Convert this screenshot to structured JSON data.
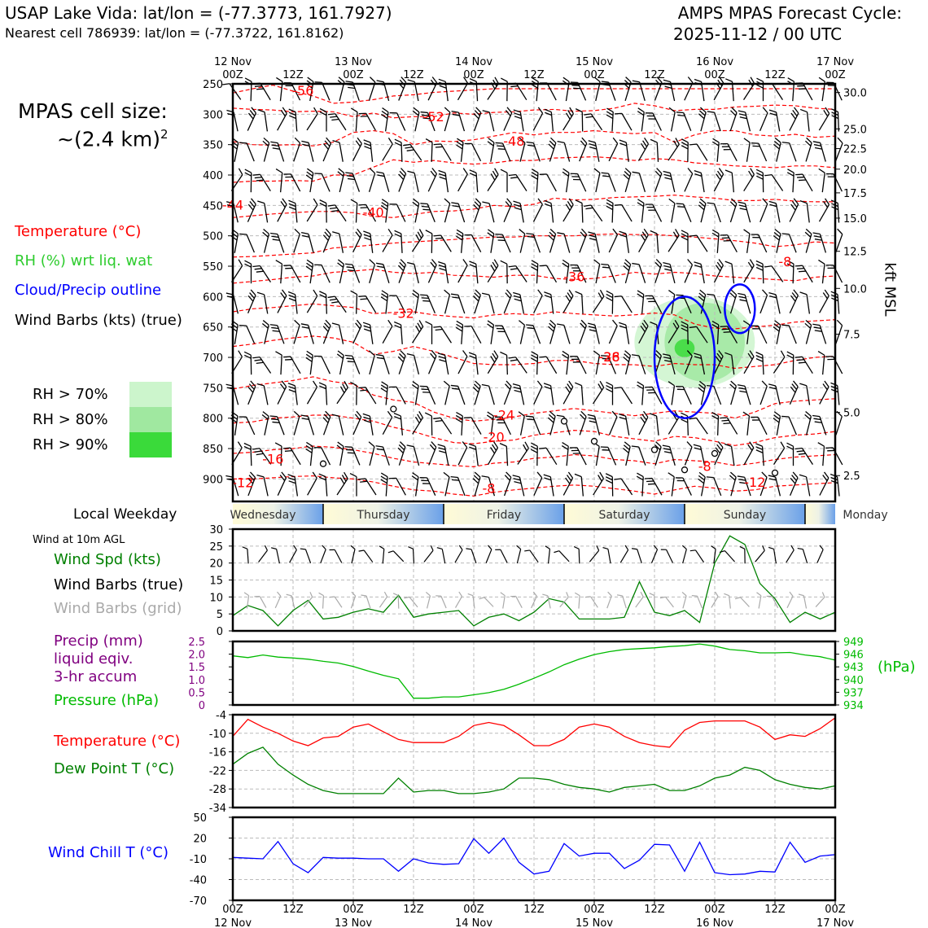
{
  "header": {
    "station_title": "USAP Lake Vida: lat/lon = (-77.3773, 161.7927)",
    "nearest_cell": "Nearest cell 786939: lat/lon = (-77.3722, 161.8162)",
    "forecast_title": "AMPS MPAS Forecast Cycle:",
    "forecast_cycle": "2025-11-12 / 00 UTC"
  },
  "cell_size": {
    "line1": "MPAS cell size:",
    "line2": "~(2.4 km)",
    "exponent": "2"
  },
  "legend_upper": {
    "temperature": "Temperature (°C)",
    "rh": "RH (%) wrt liq. wat",
    "cloud": "Cloud/Precip outline",
    "wind": "Wind Barbs (kts) (true)",
    "rh70": "RH > 70%",
    "rh80": "RH > 80%",
    "rh90": "RH > 90%"
  },
  "colors": {
    "temperature": "#ff0000",
    "rh_text": "#2ecc2e",
    "cloud": "#0000ff",
    "rh70": "#ccf5cc",
    "rh80": "#a0e8a0",
    "rh90": "#3ada3a",
    "wind_speed": "#008000",
    "grid_barbs": "#aaaaaa",
    "precip": "#800080",
    "pressure": "#00bb00",
    "dewpoint": "#008000",
    "wind_chill": "#0000ff"
  },
  "time_axis": {
    "top_ticks": [
      "00Z",
      "12Z",
      "00Z",
      "12Z",
      "00Z",
      "12Z",
      "00Z",
      "12Z",
      "00Z",
      "12Z",
      "00Z"
    ],
    "top_dates": [
      "12 Nov",
      "",
      "13 Nov",
      "",
      "14 Nov",
      "",
      "15 Nov",
      "",
      "16 Nov",
      "",
      "17 Nov"
    ],
    "bottom_ticks": [
      "00Z",
      "12Z",
      "00Z",
      "12Z",
      "00Z",
      "12Z",
      "00Z",
      "12Z",
      "00Z",
      "12Z",
      "00Z"
    ],
    "bottom_dates": [
      "12 Nov",
      "",
      "13 Nov",
      "",
      "14 Nov",
      "",
      "15 Nov",
      "",
      "16 Nov",
      "",
      "17 Nov"
    ]
  },
  "weekday_band": {
    "label": "Local Weekday",
    "days": [
      "Wednesday",
      "Thursday",
      "Friday",
      "Saturday",
      "Sunday",
      "Monday"
    ]
  },
  "wind10m": {
    "title": "Wind at 10m AGL",
    "speed_label": "Wind Spd (kts)",
    "barbs_label": "Wind Barbs (true)",
    "grid_label": "Wind Barbs (grid)"
  },
  "precip_pressure": {
    "precip_label1": "Precip (mm)",
    "precip_label2": "liquid eqiv.",
    "precip_label3": "3-hr accum",
    "pressure_label": "Pressure (hPa)",
    "unit_right": "(hPa)"
  },
  "temps": {
    "temp_label": "Temperature (°C)",
    "dew_label": "Dew Point T (°C)"
  },
  "windchill": {
    "label": "Wind Chill T (°C)"
  },
  "chart_data": [
    {
      "type": "heatmap",
      "name": "time-height cross section",
      "yaxis_left": {
        "ticks": [
          "250",
          "300",
          "350",
          "400",
          "450",
          "500",
          "550",
          "600",
          "650",
          "700",
          "750",
          "800",
          "850",
          "900"
        ],
        "ylim": [
          937,
          250
        ]
      },
      "yaxis_right": {
        "label": "kft MSL",
        "ticks": [
          "30.0",
          "25.0",
          "22.5",
          "20.0",
          "17.5",
          "15.0",
          "12.5",
          "10.0",
          "7.5",
          "5.0",
          "2.5"
        ]
      },
      "temperature_contour_labels": [
        "-56",
        "-52",
        "-48",
        "-44",
        "-40",
        "-36",
        "-32",
        "-28",
        "-24",
        "-20",
        "-16",
        "-12",
        "-8",
        "-8",
        "-12",
        "-8",
        "-36"
      ],
      "temperature_contours": [
        {
          "label": "-56",
          "hpa": [
            265,
            258,
            252,
            262,
            270,
            282,
            280,
            276,
            270,
            268,
            264,
            262,
            260,
            258,
            258,
            258,
            258,
            258,
            258,
            258,
            258,
            258,
            258,
            258,
            258,
            258,
            258,
            258,
            258,
            258,
            258
          ]
        },
        {
          "label": "-52",
          "hpa": [
            290,
            292,
            293,
            296,
            295,
            296,
            304,
            298,
            306,
            304,
            304,
            298,
            300,
            297,
            296,
            293,
            292,
            295,
            294,
            290,
            282,
            286,
            294,
            292,
            292,
            288,
            287,
            285,
            286,
            290,
            292
          ]
        },
        {
          "label": "-48",
          "hpa": [
            345,
            350,
            351,
            350,
            352,
            346,
            330,
            327,
            332,
            350,
            344,
            345,
            342,
            336,
            330,
            334,
            330,
            330,
            327,
            330,
            332,
            330,
            346,
            334,
            327,
            327,
            334,
            336,
            333,
            338,
            336
          ]
        },
        {
          "label": "-44",
          "hpa": [
            412,
            410,
            410,
            409,
            410,
            400,
            400,
            387,
            375,
            379,
            376,
            380,
            382,
            380,
            376,
            376,
            372,
            371,
            370,
            372,
            376,
            373,
            375,
            380,
            382,
            385,
            386,
            388,
            385,
            385,
            388
          ]
        },
        {
          "label": "-40",
          "hpa": [
            470,
            467,
            464,
            462,
            460,
            460,
            462,
            468,
            470,
            465,
            460,
            459,
            456,
            450,
            452,
            448,
            438,
            441,
            440,
            437,
            436,
            435,
            433,
            436,
            438,
            442,
            442,
            440,
            443,
            444,
            444
          ]
        },
        {
          "label": "-36",
          "hpa": [
            535,
            534,
            532,
            530,
            528,
            520,
            518,
            515,
            512,
            510,
            508,
            506,
            504,
            502,
            502,
            500,
            500,
            500,
            498,
            497,
            498,
            498,
            500,
            502,
            505,
            508,
            512,
            518,
            515,
            510,
            512
          ]
        },
        {
          "label": "-32",
          "hpa": [
            578,
            575,
            572,
            568,
            566,
            560,
            558,
            555,
            560,
            562,
            560,
            565,
            566,
            568,
            565,
            565,
            570,
            572,
            570,
            566,
            560,
            563,
            560,
            562,
            566,
            568,
            570,
            572,
            574,
            568,
            566
          ]
        },
        {
          "label": "-28",
          "hpa": [
            625,
            620,
            618,
            615,
            612,
            615,
            618,
            628,
            626,
            625,
            630,
            633,
            635,
            630,
            628,
            630,
            625,
            628,
            630,
            632,
            630,
            627,
            630,
            645,
            652,
            653,
            650,
            647,
            642,
            640,
            638
          ]
        },
        {
          "label": "-24",
          "hpa": [
            682,
            678,
            672,
            668,
            665,
            668,
            675,
            695,
            690,
            682,
            690,
            700,
            710,
            712,
            712,
            710,
            705,
            705,
            710,
            712,
            712,
            715,
            710,
            712,
            712,
            718,
            715,
            712,
            705,
            700,
            698
          ]
        },
        {
          "label": "-20",
          "hpa": [
            752,
            746,
            742,
            738,
            732,
            740,
            744,
            762,
            770,
            774,
            790,
            800,
            805,
            802,
            798,
            792,
            788,
            784,
            788,
            792,
            796,
            792,
            788,
            790,
            792,
            800,
            790,
            776,
            772,
            770,
            768
          ]
        },
        {
          "label": "-16",
          "hpa": [
            808,
            806,
            800,
            798,
            795,
            795,
            800,
            805,
            815,
            822,
            832,
            840,
            842,
            838,
            836,
            828,
            824,
            820,
            822,
            830,
            834,
            838,
            830,
            832,
            838,
            845,
            840,
            832,
            828,
            826,
            822
          ]
        },
        {
          "label": "-12",
          "hpa": [
            858,
            856,
            852,
            850,
            846,
            848,
            852,
            858,
            866,
            872,
            875,
            878,
            880,
            874,
            872,
            866,
            864,
            860,
            862,
            868,
            870,
            875,
            868,
            870,
            872,
            878,
            874,
            868,
            864,
            862,
            860
          ]
        },
        {
          "label": "-8",
          "hpa": [
            900,
            900,
            898,
            896,
            895,
            898,
            900,
            905,
            912,
            918,
            920,
            925,
            928,
            922,
            918,
            915,
            912,
            910,
            912,
            916,
            920,
            925,
            918,
            912,
            915,
            920,
            918,
            912,
            910,
            908,
            906
          ]
        }
      ],
      "wind_barbs": "time-height wind barb grid",
      "rh_shading": [
        {
          "level": "rh70",
          "time_h": [
            80,
            104
          ],
          "hpa": [
            600,
            750
          ]
        },
        {
          "level": "rh80",
          "time_h": [
            86,
            102
          ],
          "hpa": [
            610,
            740
          ]
        },
        {
          "level": "rh90",
          "time_h": [
            88,
            92
          ],
          "hpa": [
            670,
            700
          ]
        }
      ],
      "cloud_outline": [
        {
          "time_h": [
            84,
            96
          ],
          "hpa": [
            600,
            800
          ]
        },
        {
          "time_h": [
            98,
            104
          ],
          "hpa": [
            580,
            660
          ]
        }
      ]
    },
    {
      "type": "line",
      "name": "Wind Spd (kts)",
      "yaxis": {
        "ticks": [
          "0",
          "5",
          "10",
          "15",
          "20",
          "25",
          "30"
        ],
        "ylim": [
          0,
          30
        ]
      },
      "x_hours": [
        0,
        3,
        6,
        9,
        12,
        15,
        18,
        21,
        24,
        27,
        30,
        33,
        36,
        39,
        42,
        45,
        48,
        51,
        54,
        57,
        60,
        63,
        66,
        69,
        72,
        75,
        78,
        81,
        84,
        87,
        90,
        93,
        96,
        99,
        102,
        105,
        108,
        111,
        114,
        117,
        120
      ],
      "values": [
        4.5,
        7.5,
        6,
        1.5,
        6,
        9,
        3.5,
        4,
        5.5,
        6.5,
        5.5,
        10.5,
        4,
        5,
        5.5,
        6,
        1.5,
        4,
        5,
        3,
        5.5,
        9.5,
        8.5,
        3.5,
        3.5,
        3.5,
        4,
        14.5,
        5.5,
        4.5,
        6,
        2.5,
        20,
        28,
        25.5,
        14,
        9.5,
        2.5,
        5.5,
        3.5,
        5.5
      ]
    },
    {
      "type": "line",
      "name": "Pressure (hPa)",
      "yaxis_left": {
        "label": "Precip (mm)",
        "ticks": [
          "0",
          "0.5",
          "1.0",
          "1.5",
          "2.0",
          "2.5"
        ],
        "ylim": [
          0,
          2.5
        ]
      },
      "yaxis_right": {
        "label": "(hPa)",
        "ticks": [
          "934",
          "937",
          "940",
          "943",
          "946",
          "949"
        ],
        "ylim": [
          934,
          949
        ]
      },
      "x_hours": [
        0,
        3,
        6,
        9,
        12,
        15,
        18,
        21,
        24,
        27,
        30,
        33,
        36,
        39,
        42,
        45,
        48,
        51,
        54,
        57,
        60,
        63,
        66,
        69,
        72,
        75,
        78,
        81,
        84,
        87,
        90,
        93,
        96,
        99,
        102,
        105,
        108,
        111,
        114,
        117,
        120
      ],
      "values": [
        945.6,
        945.2,
        945.8,
        945.3,
        945.1,
        944.8,
        944.3,
        943.9,
        943.1,
        942,
        941,
        940.2,
        935.6,
        935.6,
        935.9,
        935.9,
        936.4,
        936.9,
        937.7,
        938.9,
        940.3,
        941.8,
        943.5,
        944.8,
        945.9,
        946.6,
        947.1,
        947.3,
        947.5,
        947.8,
        948,
        948.4,
        947.9,
        947.1,
        946.8,
        946.3,
        946.3,
        946.4,
        945.8,
        945.4,
        944.6
      ]
    },
    {
      "type": "line",
      "name": "Temperature / Dew Point",
      "yaxis": {
        "ticks": [
          "-4",
          "-10",
          "-16",
          "-22",
          "-28",
          "-34"
        ],
        "ylim": [
          -34,
          -4
        ]
      },
      "x_hours": [
        0,
        3,
        6,
        9,
        12,
        15,
        18,
        21,
        24,
        27,
        30,
        33,
        36,
        39,
        42,
        45,
        48,
        51,
        54,
        57,
        60,
        63,
        66,
        69,
        72,
        75,
        78,
        81,
        84,
        87,
        90,
        93,
        96,
        99,
        102,
        105,
        108,
        111,
        114,
        117,
        120
      ],
      "series": [
        {
          "name": "Temperature (°C)",
          "values": [
            -11,
            -5.5,
            -8,
            -10,
            -12.5,
            -14,
            -11.5,
            -11,
            -8,
            -7,
            -9.5,
            -12,
            -13,
            -13,
            -13,
            -11,
            -7.5,
            -6.5,
            -7.5,
            -10.5,
            -14,
            -14,
            -12,
            -8,
            -7,
            -8,
            -11,
            -13,
            -14,
            -14.5,
            -9,
            -6.5,
            -6,
            -6,
            -6,
            -8,
            -12,
            -10.5,
            -11,
            -8.5,
            -5
          ]
        },
        {
          "name": "Dew Point T (°C)",
          "values": [
            -20,
            -16.5,
            -14.5,
            -20,
            -23.5,
            -26.5,
            -28.5,
            -29.5,
            -29.5,
            -29.5,
            -29.5,
            -24.5,
            -29,
            -28.5,
            -28.5,
            -29.5,
            -29.5,
            -29,
            -28,
            -24.5,
            -24.5,
            -25,
            -26.5,
            -27.5,
            -28,
            -29,
            -27.5,
            -27,
            -26.5,
            -28.5,
            -28.5,
            -27,
            -24.5,
            -23.5,
            -21,
            -22,
            -25,
            -26.5,
            -27.5,
            -28,
            -27
          ]
        }
      ]
    },
    {
      "type": "line",
      "name": "Wind Chill T (°C)",
      "yaxis": {
        "ticks": [
          "50",
          "20",
          "-10",
          "-40",
          "-70"
        ],
        "ylim": [
          -70,
          50
        ]
      },
      "x_hours": [
        0,
        3,
        6,
        9,
        12,
        15,
        18,
        21,
        24,
        27,
        30,
        33,
        36,
        39,
        42,
        45,
        48,
        51,
        54,
        57,
        60,
        63,
        66,
        69,
        72,
        75,
        78,
        81,
        84,
        87,
        90,
        93,
        96,
        99,
        102,
        105,
        108,
        111,
        114,
        117,
        120
      ],
      "values": [
        -8,
        -9,
        -10,
        15,
        -17,
        -30,
        -8,
        -9,
        -9,
        -10,
        -10,
        -28,
        -10,
        -16,
        -18,
        -17,
        19,
        -2,
        20,
        -15,
        -32,
        -28,
        12,
        -6,
        -2,
        -2,
        -24,
        -12,
        11,
        10,
        -28,
        14,
        -30,
        -33,
        -32,
        -28,
        -29,
        14,
        -15,
        -6,
        -4
      ]
    }
  ]
}
